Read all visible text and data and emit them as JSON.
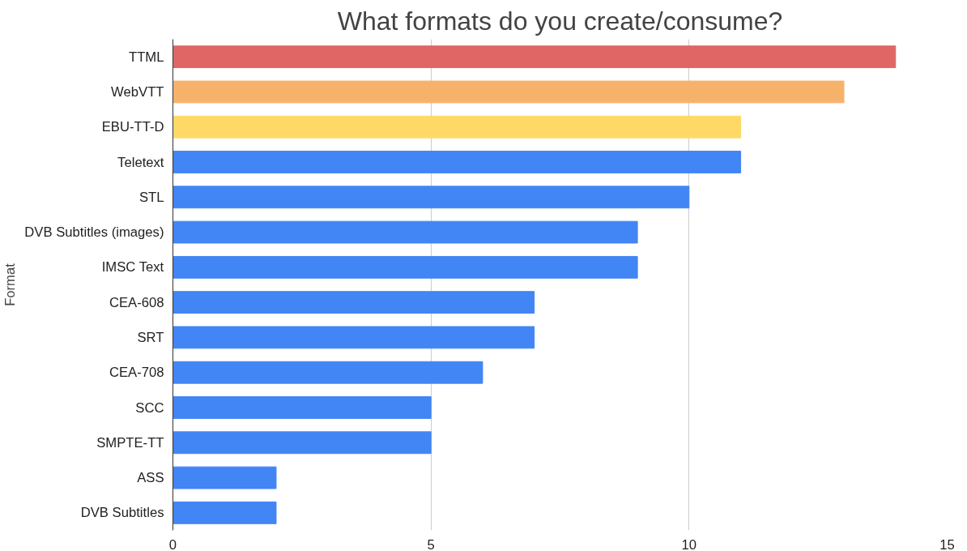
{
  "chart_data": {
    "type": "bar",
    "orientation": "horizontal",
    "title": "What formats do you create/consume?",
    "ylabel": "Format",
    "categories": [
      "TTML",
      "WebVTT",
      "EBU-TT-D",
      "Teletext",
      "STL",
      "DVB Subtitles (images)",
      "IMSC Text",
      "CEA-608",
      "SRT",
      "CEA-708",
      "SCC",
      "SMPTE-TT",
      "ASS",
      "DVB Subtitles"
    ],
    "values": [
      14,
      13,
      11,
      11,
      10,
      9,
      9,
      7,
      7,
      6,
      5,
      5,
      2,
      2
    ],
    "colors": [
      "#e06666",
      "#f6b26b",
      "#ffd966",
      "#4285f4",
      "#4285f4",
      "#4285f4",
      "#4285f4",
      "#4285f4",
      "#4285f4",
      "#4285f4",
      "#4285f4",
      "#4285f4",
      "#4285f4",
      "#4285f4"
    ],
    "xlim": [
      0,
      15
    ],
    "xticks": [
      0,
      5,
      10,
      15
    ],
    "grid": "x"
  }
}
